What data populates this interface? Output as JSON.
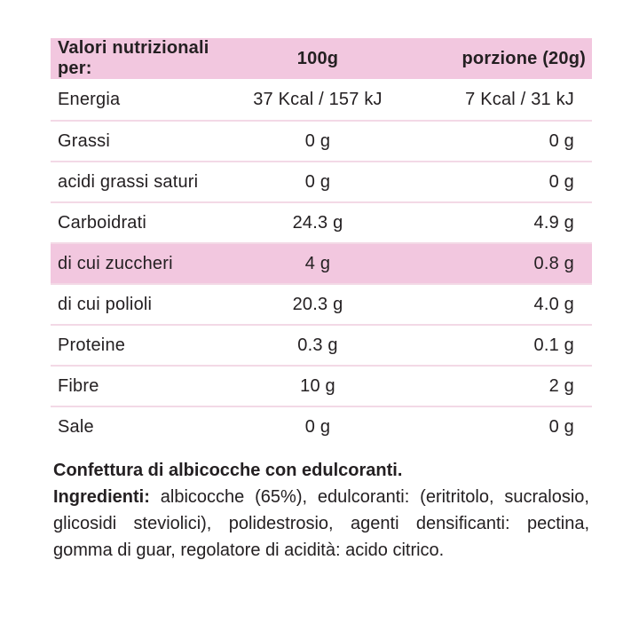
{
  "table": {
    "header": {
      "col1": "Valori nutrizionali per:",
      "col2": "100g",
      "col3": "porzione (20g)"
    },
    "rows": [
      {
        "label": "Energia",
        "per100g": "37 Kcal / 157 kJ",
        "portion": "7 Kcal / 31 kJ",
        "highlight": false
      },
      {
        "label": "Grassi",
        "per100g": "0 g",
        "portion": "0 g",
        "highlight": false
      },
      {
        "label": "acidi grassi saturi",
        "per100g": "0 g",
        "portion": "0 g",
        "highlight": false
      },
      {
        "label": "Carboidrati",
        "per100g": "24.3 g",
        "portion": "4.9 g",
        "highlight": false
      },
      {
        "label": "di cui zuccheri",
        "per100g": "4 g",
        "portion": "0.8 g",
        "highlight": true
      },
      {
        "label": "di cui polioli",
        "per100g": "20.3 g",
        "portion": "4.0 g",
        "highlight": false
      },
      {
        "label": "Proteine",
        "per100g": "0.3 g",
        "portion": "0.1 g",
        "highlight": false
      },
      {
        "label": "Fibre",
        "per100g": "10 g",
        "portion": "2 g",
        "highlight": false
      },
      {
        "label": "Sale",
        "per100g": "0 g",
        "portion": "0 g",
        "highlight": false
      }
    ]
  },
  "description": {
    "title": "Confettura di albicocche con edulcoranti.",
    "ingredients_label": "Ingredienti:",
    "ingredients_text": " albicocche (65%), edulcoranti: (eritritolo, sucralosio, glicosidi steviolici), polidestrosio, agenti densificanti: pectina, gomma di guar, regolatore di acidità: acido citrico."
  },
  "colors": {
    "highlight_pink": "#F2C7DF",
    "divider_pink": "#F3D9E6",
    "text": "#242022",
    "background": "#FFFFFF"
  }
}
